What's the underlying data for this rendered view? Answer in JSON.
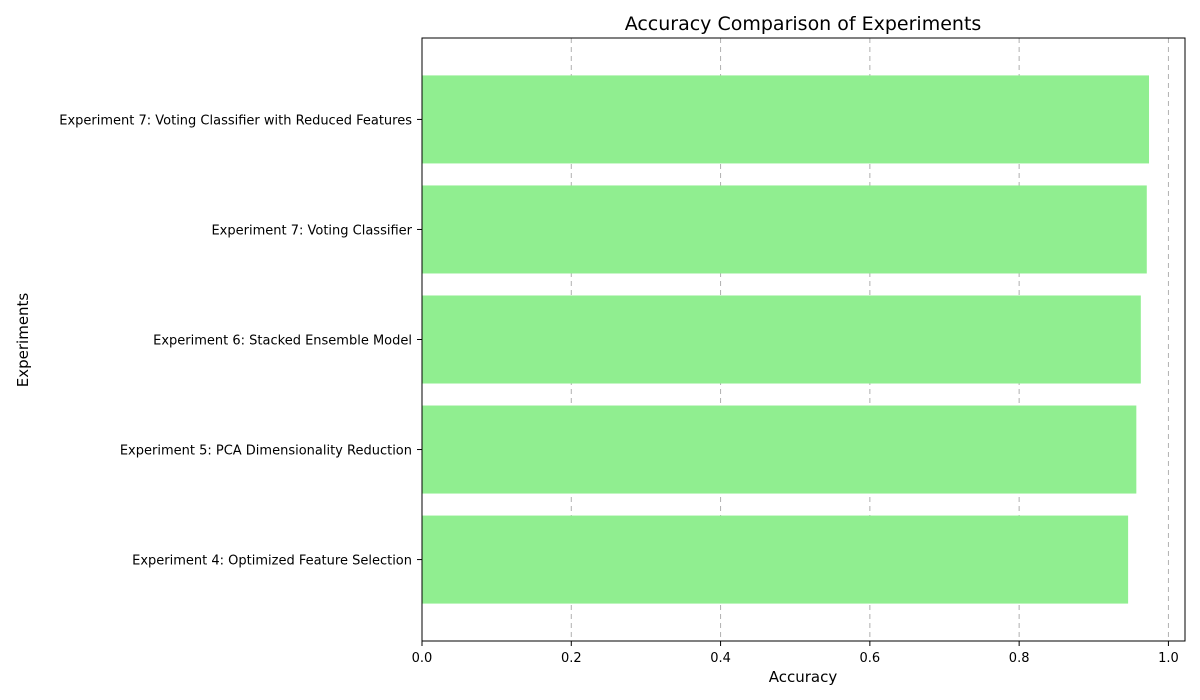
{
  "chart_data": {
    "type": "bar",
    "orientation": "horizontal",
    "title": "Accuracy Comparison of Experiments",
    "xlabel": "Accuracy",
    "ylabel": "Experiments",
    "categories": [
      "Experiment 4: Optimized Feature Selection",
      "Experiment 5: PCA Dimensionality Reduction",
      "Experiment 6: Stacked Ensemble Model",
      "Experiment 7: Voting Classifier",
      "Experiment 7: Voting Classifier with Reduced Features"
    ],
    "values": [
      0.946,
      0.957,
      0.963,
      0.971,
      0.974
    ],
    "xlim": [
      0,
      1.0
    ],
    "xticks": [
      0.0,
      0.2,
      0.4,
      0.6,
      0.8,
      1.0
    ],
    "xtick_labels": [
      "0.0",
      "0.2",
      "0.4",
      "0.6",
      "0.8",
      "1.0"
    ],
    "bar_color": "#90ee90",
    "grid": "x-axis dashed",
    "legend": "none"
  }
}
